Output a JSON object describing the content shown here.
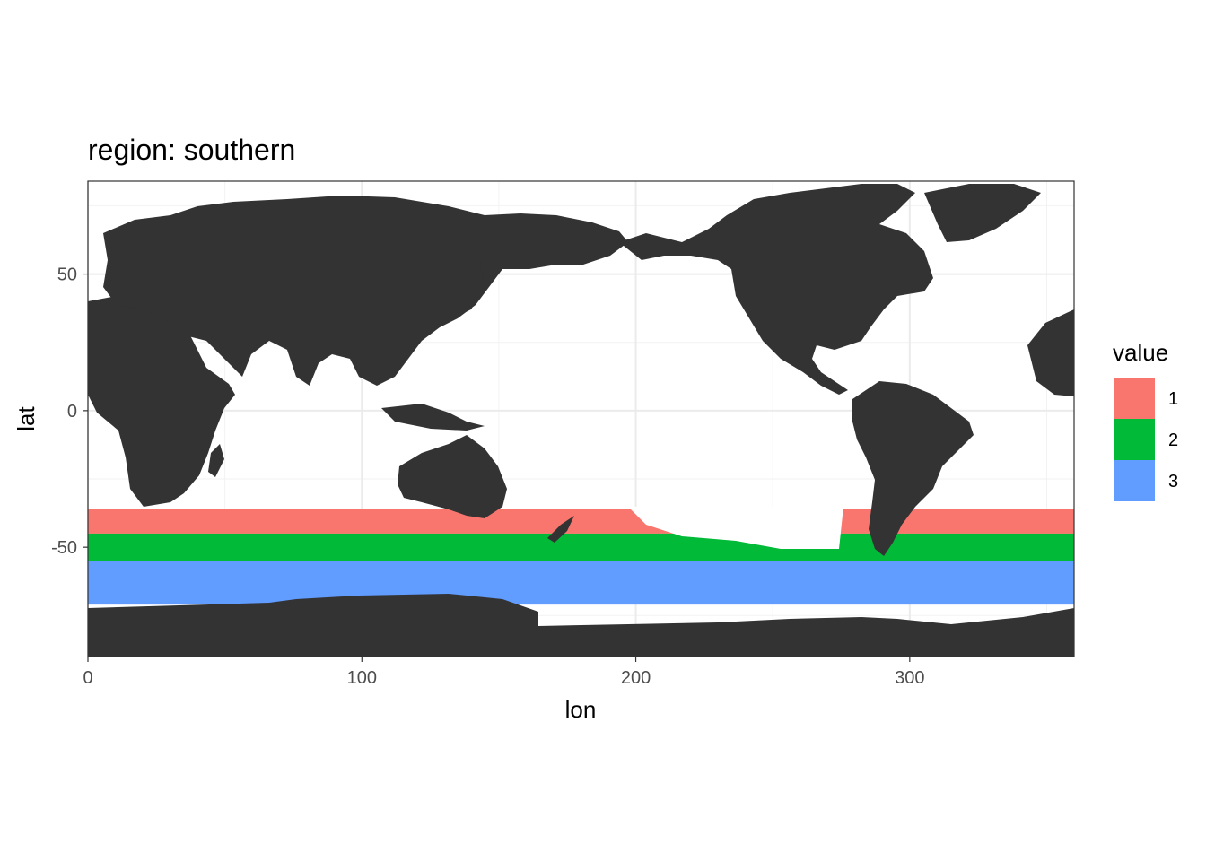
{
  "chart_data": {
    "type": "heatmap",
    "title": "region: southern",
    "xlabel": "lon",
    "ylabel": "lat",
    "xlim": [
      0,
      360
    ],
    "ylim": [
      -90,
      84
    ],
    "x_ticks": [
      0,
      100,
      200,
      300
    ],
    "y_ticks": [
      -50,
      0,
      50
    ],
    "grid": true,
    "legend": {
      "title": "value",
      "position": "right",
      "entries": [
        {
          "label": "1",
          "color": "#F8766D"
        },
        {
          "label": "2",
          "color": "#00BA38"
        },
        {
          "label": "3",
          "color": "#619CFF"
        }
      ]
    },
    "land_color": "#333333",
    "bands": [
      {
        "value": "1",
        "lat_min": -45,
        "lat_max": -36
      },
      {
        "value": "2",
        "lat_min": -55,
        "lat_max": -45
      },
      {
        "value": "3",
        "lat_min": -71,
        "lat_max": -55
      }
    ]
  }
}
